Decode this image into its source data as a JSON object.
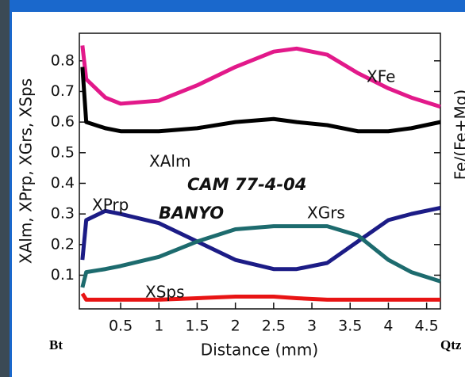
{
  "chart_data": {
    "type": "line",
    "x_label": "Distance (mm)",
    "y_label": "XAlm, XPrp, XGrs, XSps",
    "y2_label": "Fe/(Fe+Mg)",
    "annotations": [
      "CAM 77-4-04",
      "BANYO"
    ],
    "left_end_label": "Bt",
    "right_end_label": "Qtz",
    "x": [
      0,
      0.05,
      0.3,
      0.5,
      1,
      1.5,
      2,
      2.5,
      2.8,
      3.2,
      3.6,
      4,
      4.3,
      4.68
    ],
    "series": [
      {
        "name": "XFe",
        "color": "#e2198a",
        "values": [
          0.85,
          0.74,
          0.68,
          0.66,
          0.67,
          0.72,
          0.78,
          0.83,
          0.84,
          0.82,
          0.76,
          0.71,
          0.68,
          0.65
        ]
      },
      {
        "name": "XAlm",
        "color": "#000000",
        "values": [
          0.78,
          0.6,
          0.58,
          0.57,
          0.57,
          0.58,
          0.6,
          0.61,
          0.6,
          0.59,
          0.57,
          0.57,
          0.58,
          0.6
        ]
      },
      {
        "name": "XPrp",
        "color": "#1c1c86",
        "values": [
          0.15,
          0.28,
          0.31,
          0.3,
          0.27,
          0.21,
          0.15,
          0.12,
          0.12,
          0.14,
          0.21,
          0.28,
          0.3,
          0.32
        ]
      },
      {
        "name": "XGrs",
        "color": "#1d6b6e",
        "values": [
          0.06,
          0.11,
          0.12,
          0.13,
          0.16,
          0.21,
          0.25,
          0.26,
          0.26,
          0.26,
          0.23,
          0.15,
          0.11,
          0.08
        ]
      },
      {
        "name": "XSps",
        "color": "#e81414",
        "values": [
          0.04,
          0.02,
          0.02,
          0.02,
          0.02,
          0.025,
          0.03,
          0.03,
          0.025,
          0.02,
          0.02,
          0.02,
          0.02,
          0.02
        ]
      }
    ],
    "xlim": [
      -0.04,
      4.68
    ],
    "ylim": [
      -0.01,
      0.89
    ],
    "xticks": [
      0.5,
      1,
      1.5,
      2,
      2.5,
      3,
      3.5,
      4,
      4.5
    ],
    "yticks": [
      0.1,
      0.2,
      0.3,
      0.4,
      0.5,
      0.6,
      0.7,
      0.8
    ]
  }
}
